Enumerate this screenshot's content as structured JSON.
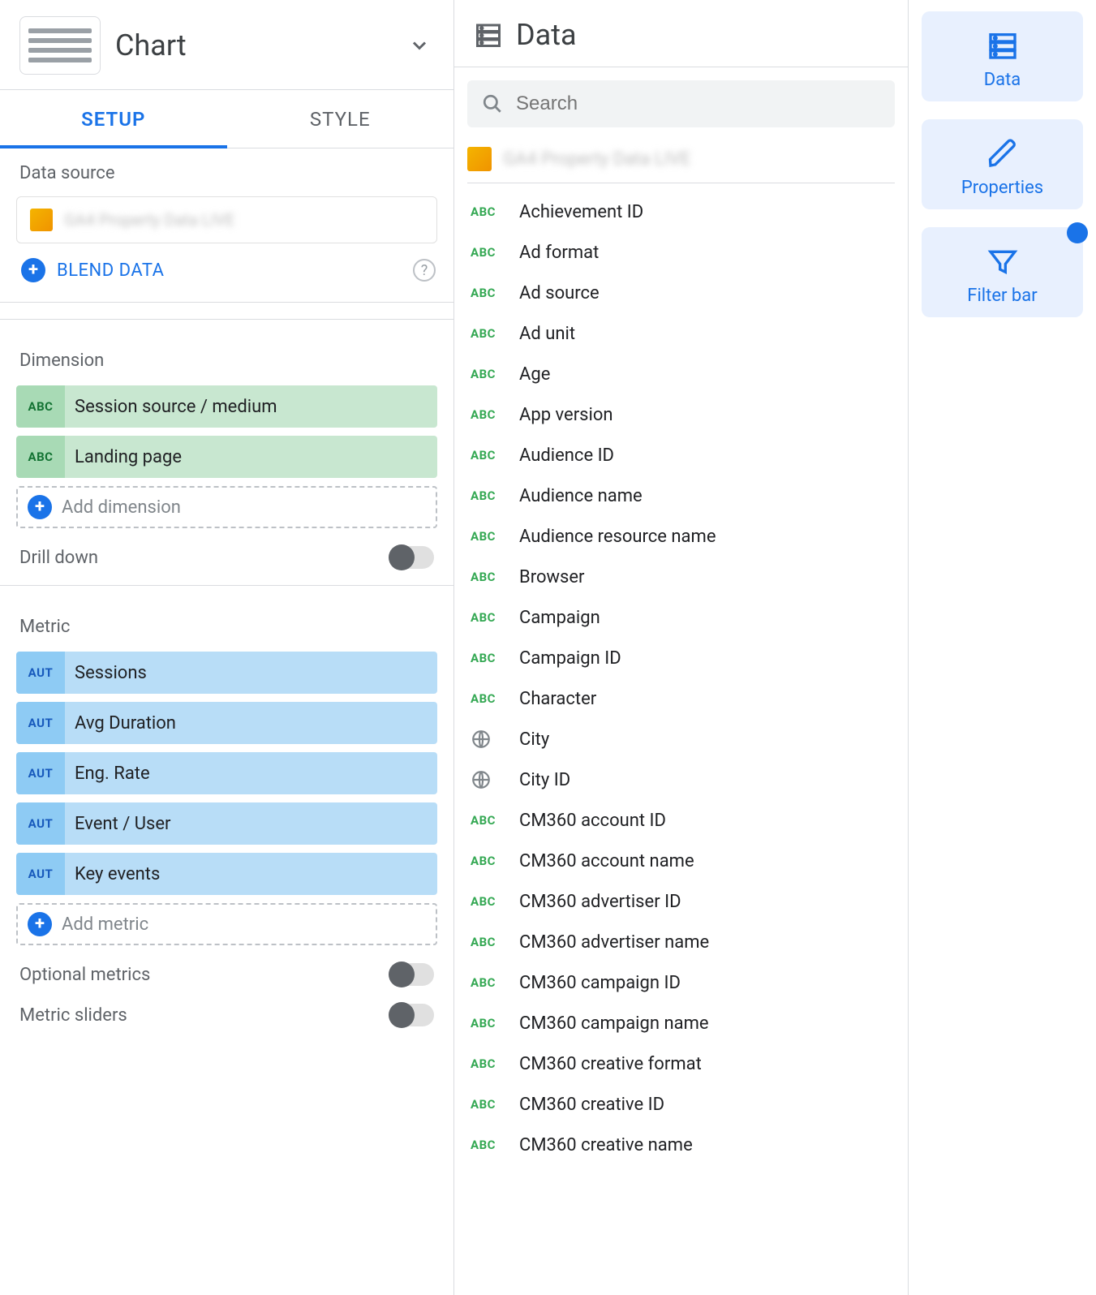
{
  "chart": {
    "label": "Chart"
  },
  "tabs": {
    "setup": "SETUP",
    "style": "STYLE"
  },
  "datasource": {
    "section_label": "Data source",
    "source_name": "GA4 Property Data LIVE",
    "blend_label": "BLEND DATA"
  },
  "dimension": {
    "label": "Dimension",
    "items": [
      {
        "badge": "ABC",
        "label": "Session source / medium"
      },
      {
        "badge": "ABC",
        "label": "Landing page"
      }
    ],
    "add_label": "Add dimension"
  },
  "drilldown_label": "Drill down",
  "metric": {
    "label": "Metric",
    "items": [
      {
        "badge": "AUT",
        "label": "Sessions"
      },
      {
        "badge": "AUT",
        "label": "Avg Duration"
      },
      {
        "badge": "AUT",
        "label": "Eng. Rate"
      },
      {
        "badge": "AUT",
        "label": "Event / User"
      },
      {
        "badge": "AUT",
        "label": "Key events"
      }
    ],
    "add_label": "Add metric"
  },
  "optional_metrics_label": "Optional metrics",
  "metric_sliders_label": "Metric sliders",
  "data_panel": {
    "header": "Data",
    "search_placeholder": "Search",
    "source_name": "GA4 Property Data LIVE",
    "fields": [
      {
        "type": "abc",
        "label": "Achievement ID"
      },
      {
        "type": "abc",
        "label": "Ad format"
      },
      {
        "type": "abc",
        "label": "Ad source"
      },
      {
        "type": "abc",
        "label": "Ad unit"
      },
      {
        "type": "abc",
        "label": "Age"
      },
      {
        "type": "abc",
        "label": "App version"
      },
      {
        "type": "abc",
        "label": "Audience ID"
      },
      {
        "type": "abc",
        "label": "Audience name"
      },
      {
        "type": "abc",
        "label": "Audience resource name"
      },
      {
        "type": "abc",
        "label": "Browser"
      },
      {
        "type": "abc",
        "label": "Campaign"
      },
      {
        "type": "abc",
        "label": "Campaign ID"
      },
      {
        "type": "abc",
        "label": "Character"
      },
      {
        "type": "geo",
        "label": "City"
      },
      {
        "type": "geo",
        "label": "City ID"
      },
      {
        "type": "abc",
        "label": "CM360 account ID"
      },
      {
        "type": "abc",
        "label": "CM360 account name"
      },
      {
        "type": "abc",
        "label": "CM360 advertiser ID"
      },
      {
        "type": "abc",
        "label": "CM360 advertiser name"
      },
      {
        "type": "abc",
        "label": "CM360 campaign ID"
      },
      {
        "type": "abc",
        "label": "CM360 campaign name"
      },
      {
        "type": "abc",
        "label": "CM360 creative format"
      },
      {
        "type": "abc",
        "label": "CM360 creative ID"
      },
      {
        "type": "abc",
        "label": "CM360 creative name"
      }
    ]
  },
  "rail": {
    "data": "Data",
    "properties": "Properties",
    "filter": "Filter bar"
  },
  "colors": {
    "accent": "#1a73e8",
    "dim_chip_bg": "#c8e7d0",
    "met_chip_bg": "#b8ddf7",
    "rail_bg": "#e8f0fe",
    "abc_green": "#34a853"
  }
}
